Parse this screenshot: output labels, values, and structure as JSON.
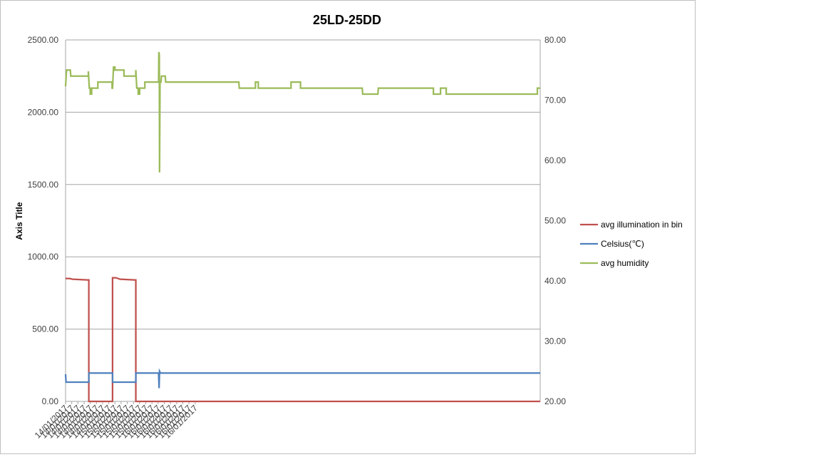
{
  "chart_data": {
    "type": "line",
    "title": "25LD-25DD",
    "ylabel": "Axis Title",
    "xlabel": "",
    "ylim": [
      0,
      2500
    ],
    "y2lim": [
      20,
      80
    ],
    "y_ticks": [
      "0.00",
      "500.00",
      "1000.00",
      "1500.00",
      "2000.00",
      "2500.00"
    ],
    "y2_ticks": [
      "20.00",
      "30.00",
      "40.00",
      "50.00",
      "60.00",
      "70.00",
      "80.00"
    ],
    "x_range": [
      0,
      100
    ],
    "x_tick_labels": [
      {
        "x": 0,
        "label": "14/01/2017"
      },
      {
        "x": 1.3,
        "label": "14/01/2017"
      },
      {
        "x": 2.6,
        "label": "14/01/2017"
      },
      {
        "x": 3.9,
        "label": "14/01/2017"
      },
      {
        "x": 5.2,
        "label": "14/01/2017"
      },
      {
        "x": 6.5,
        "label": "14/01/2017"
      },
      {
        "x": 7.8,
        "label": "14/01/2017"
      },
      {
        "x": 9.1,
        "label": "15/01/2017"
      },
      {
        "x": 10.4,
        "label": "15/01/2017"
      },
      {
        "x": 11.7,
        "label": "15/01/2017"
      },
      {
        "x": 13.0,
        "label": "15/01/2017"
      },
      {
        "x": 14.3,
        "label": "15/01/2017"
      },
      {
        "x": 15.6,
        "label": "15/01/2017"
      },
      {
        "x": 16.9,
        "label": "15/01/2017"
      },
      {
        "x": 18.2,
        "label": "16/01/2017"
      },
      {
        "x": 19.5,
        "label": "16/01/2017"
      },
      {
        "x": 20.8,
        "label": "16/01/2017"
      },
      {
        "x": 22.1,
        "label": "16/01/2017"
      },
      {
        "x": 23.4,
        "label": "16/01/2017"
      },
      {
        "x": 24.7,
        "label": "16/01/2017"
      },
      {
        "x": 26.0,
        "label": "16/01/2017"
      },
      {
        "x": 27.3,
        "label": "16/01/2017"
      }
    ],
    "grid": true,
    "legend_position": "right",
    "series": [
      {
        "name": "avg illumination in bin",
        "axis": "left",
        "color": "#c0504d",
        "points": [
          [
            0,
            850
          ],
          [
            0.8,
            850
          ],
          [
            1.5,
            845
          ],
          [
            4.5,
            840
          ],
          [
            4.9,
            840
          ],
          [
            4.9,
            0
          ],
          [
            9.9,
            0
          ],
          [
            9.9,
            855
          ],
          [
            10.6,
            855
          ],
          [
            11.5,
            845
          ],
          [
            14.5,
            840
          ],
          [
            14.8,
            840
          ],
          [
            14.8,
            0
          ],
          [
            100,
            0
          ]
        ]
      },
      {
        "name": "Celsius(℃)",
        "axis": "right",
        "color": "#4f81bd",
        "points": [
          [
            0,
            24.5
          ],
          [
            0.1,
            23.2
          ],
          [
            4.9,
            23.2
          ],
          [
            4.9,
            24.7
          ],
          [
            9.9,
            24.7
          ],
          [
            9.9,
            23.2
          ],
          [
            14.8,
            23.2
          ],
          [
            14.8,
            24.7
          ],
          [
            19.6,
            24.7
          ],
          [
            19.7,
            22.2
          ],
          [
            19.8,
            25.0
          ],
          [
            20.0,
            24.7
          ],
          [
            100,
            24.7
          ]
        ]
      },
      {
        "name": "avg humidity",
        "axis": "right",
        "color": "#9bbb59",
        "points": [
          [
            0,
            72.3
          ],
          [
            0.2,
            75.0
          ],
          [
            1.0,
            75.0
          ],
          [
            1.1,
            74.0
          ],
          [
            4.8,
            74.0
          ],
          [
            4.8,
            74.8
          ],
          [
            5.0,
            72.0
          ],
          [
            5.2,
            72.0
          ],
          [
            5.2,
            71.0
          ],
          [
            5.5,
            71.0
          ],
          [
            5.5,
            72.0
          ],
          [
            6.8,
            72.0
          ],
          [
            6.8,
            73.0
          ],
          [
            9.8,
            73.0
          ],
          [
            9.8,
            72.0
          ],
          [
            9.9,
            72.0
          ],
          [
            10.1,
            75.5
          ],
          [
            10.4,
            75.5
          ],
          [
            10.4,
            75.0
          ],
          [
            12.3,
            75.0
          ],
          [
            12.3,
            74.0
          ],
          [
            14.8,
            74.0
          ],
          [
            14.8,
            75.0
          ],
          [
            15.0,
            72.0
          ],
          [
            15.3,
            72.0
          ],
          [
            15.3,
            71.0
          ],
          [
            15.6,
            71.0
          ],
          [
            15.6,
            72.0
          ],
          [
            16.7,
            72.0
          ],
          [
            16.7,
            73.0
          ],
          [
            19.6,
            73.0
          ],
          [
            19.65,
            78.0
          ],
          [
            19.75,
            77.5
          ],
          [
            19.8,
            58.0
          ],
          [
            19.9,
            73.0
          ],
          [
            20.1,
            73.0
          ],
          [
            20.2,
            74.0
          ],
          [
            21.0,
            74.0
          ],
          [
            21.1,
            73.0
          ],
          [
            36.5,
            73.0
          ],
          [
            36.6,
            72.0
          ],
          [
            40.0,
            72.0
          ],
          [
            40.0,
            73.0
          ],
          [
            40.6,
            73.0
          ],
          [
            40.6,
            72.0
          ],
          [
            47.5,
            72.0
          ],
          [
            47.5,
            73.0
          ],
          [
            49.5,
            73.0
          ],
          [
            49.5,
            72.0
          ],
          [
            62.5,
            72.0
          ],
          [
            62.6,
            71.0
          ],
          [
            65.8,
            71.0
          ],
          [
            65.9,
            72.0
          ],
          [
            77.5,
            72.0
          ],
          [
            77.5,
            71.0
          ],
          [
            79.0,
            71.0
          ],
          [
            79.0,
            72.0
          ],
          [
            80.2,
            72.0
          ],
          [
            80.2,
            71.0
          ],
          [
            99.4,
            71.0
          ],
          [
            99.4,
            72.0
          ],
          [
            100,
            72.0
          ]
        ]
      }
    ]
  }
}
